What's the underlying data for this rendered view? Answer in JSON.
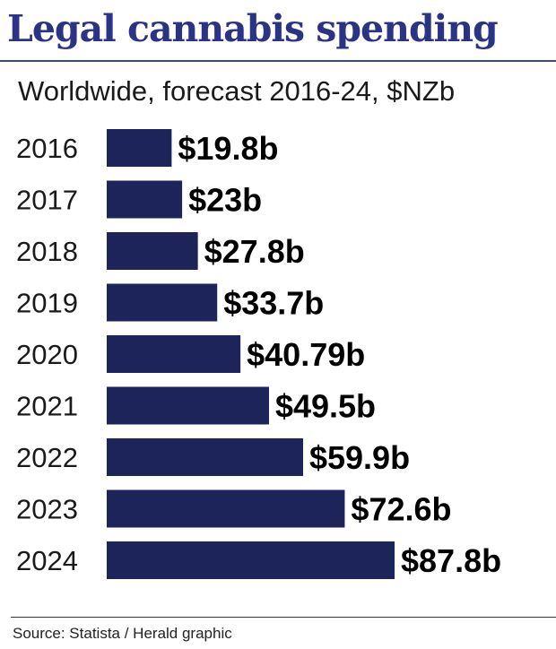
{
  "title": "Legal cannabis spending",
  "subtitle": "Worldwide, forecast 2016-24, $NZb",
  "source": "Source: Statista / Herald graphic",
  "colors": {
    "bar": "#1c2459",
    "title": "#2a3384"
  },
  "chart_data": {
    "type": "bar",
    "orientation": "horizontal",
    "categories": [
      "2016",
      "2017",
      "2018",
      "2019",
      "2020",
      "2021",
      "2022",
      "2023",
      "2024"
    ],
    "values": [
      19.8,
      23,
      27.8,
      33.7,
      40.79,
      49.5,
      59.9,
      72.6,
      87.8
    ],
    "value_labels": [
      "$19.8b",
      "$23b",
      "$27.8b",
      "$33.7b",
      "$40.79b",
      "$49.5b",
      "$59.9b",
      "$72.6b",
      "$87.8b"
    ],
    "xlim": [
      0,
      87.8
    ],
    "grid": false,
    "legend": "none"
  }
}
